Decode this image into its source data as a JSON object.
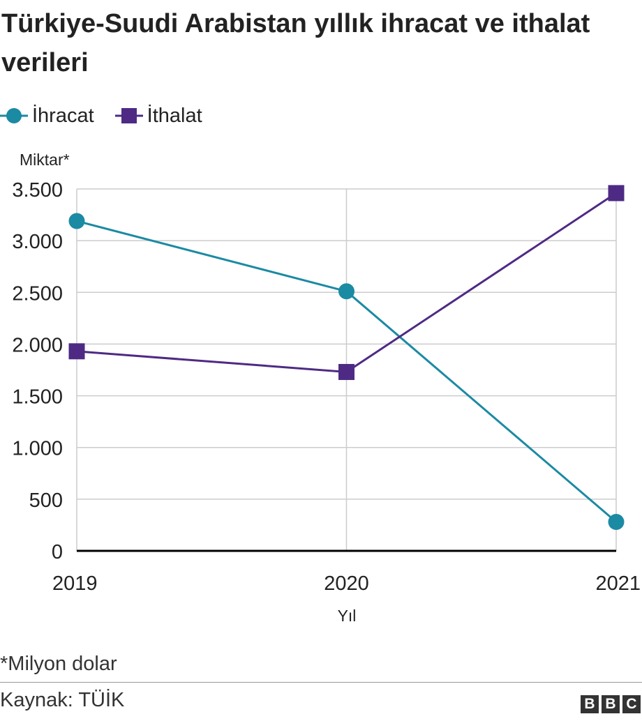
{
  "title": "Türkiye-Suudi Arabistan yıllık ihracat ve ithalat verileri",
  "legend": {
    "exports": "İhracat",
    "imports": "İthalat"
  },
  "note": "*Milyon dolar",
  "source": "Kaynak: TÜİK",
  "logo": [
    "B",
    "B",
    "C"
  ],
  "colors": {
    "exports": "#1b8aa3",
    "imports": "#4e2a84",
    "grid": "#cccccc",
    "baseline": "#000000"
  },
  "chart_data": {
    "type": "line",
    "x": [
      "2019",
      "2020",
      "2021"
    ],
    "series": [
      {
        "name": "İhracat",
        "values": [
          3190,
          2510,
          280
        ],
        "marker": "circle"
      },
      {
        "name": "İthalat",
        "values": [
          1930,
          1730,
          3460
        ],
        "marker": "square"
      }
    ],
    "xlabel": "Yıl",
    "ylabel": "Miktar*",
    "ylim": [
      0,
      3500
    ],
    "yticks": [
      0,
      500,
      1000,
      1500,
      2000,
      2500,
      3000,
      3500
    ],
    "ytick_labels": [
      "0",
      "500",
      "1.000",
      "1.500",
      "2.000",
      "2.500",
      "3.000",
      "3.500"
    ],
    "grid": true,
    "legend_position": "top-left"
  }
}
